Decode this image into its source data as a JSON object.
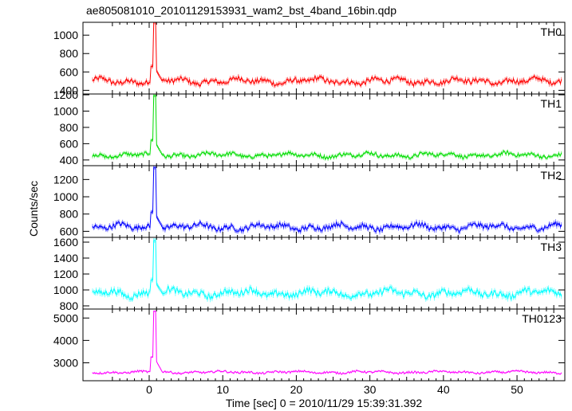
{
  "chart_data": {
    "type": "line",
    "title": "ae805081010_20101129153931_wam2_bst_4band_16bin.qdp",
    "xlabel": "Time [sec] 0 = 2010/11/29 15:39:31.392",
    "ylabel": "Counts/sec",
    "xlim": [
      -9,
      56.5
    ],
    "xticks": [
      0,
      10,
      20,
      30,
      40,
      50
    ],
    "xtick_labels": [
      "0",
      "10",
      "20",
      "30",
      "40",
      "50"
    ],
    "grid": false,
    "legend": "none",
    "burst": {
      "time": 0.6
    },
    "panels": [
      {
        "label": "TH0",
        "color": "#ff0000",
        "ylim": [
          360,
          1140
        ],
        "yticks": [
          400,
          600,
          800,
          1000
        ],
        "ytick_labels": [
          "400",
          "600",
          "800",
          "1000"
        ],
        "baseline": 500,
        "noise": 35,
        "err": 22,
        "peak": 1140
      },
      {
        "label": "TH1",
        "color": "#00dd00",
        "ylim": [
          330,
          1210
        ],
        "yticks": [
          400,
          600,
          800,
          1000,
          1200
        ],
        "ytick_labels": [
          "400",
          "600",
          "800",
          "1000",
          "1200"
        ],
        "baseline": 460,
        "noise": 30,
        "err": 20,
        "peak": 1190
      },
      {
        "label": "TH2",
        "color": "#0000ff",
        "ylim": [
          530,
          1360
        ],
        "yticks": [
          600,
          800,
          1000,
          1200
        ],
        "ytick_labels": [
          "600",
          "800",
          "1000",
          "1200"
        ],
        "baseline": 650,
        "noise": 38,
        "err": 25,
        "peak": 1340
      },
      {
        "label": "TH3",
        "color": "#00ffff",
        "ylim": [
          760,
          1660
        ],
        "yticks": [
          800,
          1000,
          1200,
          1400,
          1600
        ],
        "ytick_labels": [
          "800",
          "1000",
          "1200",
          "1400",
          "1600"
        ],
        "baseline": 960,
        "noise": 50,
        "err": 30,
        "peak": 1620
      },
      {
        "label": "TH0123",
        "color": "#ff00ff",
        "ylim": [
          2200,
          5400
        ],
        "yticks": [
          3000,
          4000,
          5000
        ],
        "ytick_labels": [
          "3000",
          "4000",
          "5000"
        ],
        "baseline": 2580,
        "noise": 55,
        "err": 35,
        "peak": 5300
      }
    ]
  }
}
